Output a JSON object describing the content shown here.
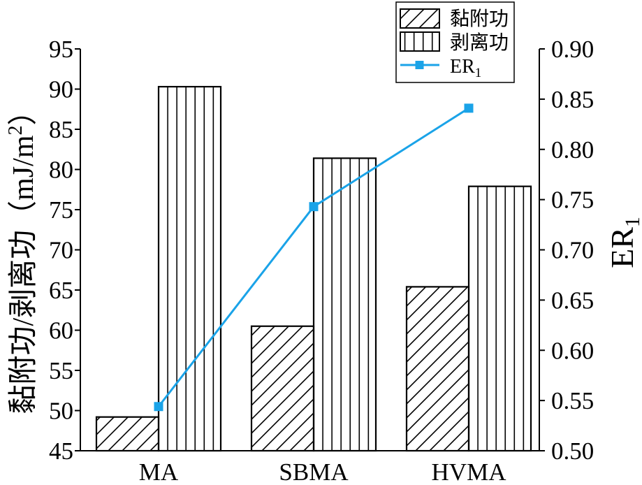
{
  "chart_data": {
    "type": "bar",
    "categories": [
      "MA",
      "SBMA",
      "HVMA"
    ],
    "series": [
      {
        "name": "黏附功",
        "type": "bar",
        "values": [
          49.2,
          60.5,
          65.4
        ]
      },
      {
        "name": "剥离功",
        "type": "bar",
        "values": [
          90.3,
          81.4,
          77.9
        ]
      },
      {
        "name": "ER",
        "name_sub": "1",
        "type": "line",
        "values": [
          0.544,
          0.743,
          0.841
        ]
      }
    ],
    "ylabel_left": {
      "text": "黏附功/剥离功（mJ/m",
      "sup": "2",
      "tail": "）"
    },
    "ylabel_right": {
      "text": "ER",
      "sub": "1"
    },
    "ylim_left": [
      45,
      95
    ],
    "yticks_left": [
      "45",
      "50",
      "55",
      "60",
      "65",
      "70",
      "75",
      "80",
      "85",
      "90",
      "95"
    ],
    "ylim_right": [
      0.5,
      0.9
    ],
    "yticks_right": [
      "0.50",
      "0.55",
      "0.60",
      "0.65",
      "0.70",
      "0.75",
      "0.80",
      "0.85",
      "0.90"
    ],
    "grid": false,
    "legend": {
      "placement": "top-right"
    },
    "colors": {
      "line": "#1aa3e8",
      "bar_fill": "#ffffff",
      "edge": "#000000"
    }
  }
}
